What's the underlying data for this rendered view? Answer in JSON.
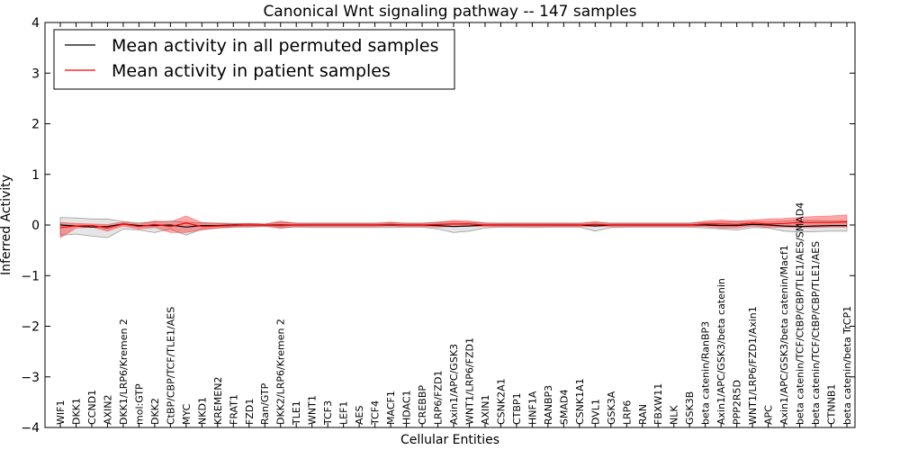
{
  "chart_data": {
    "type": "line",
    "title": "Canonical Wnt signaling pathway -- 147 samples",
    "xlabel": "Cellular Entities",
    "ylabel": "Inferred Activity",
    "ylim": [
      -4,
      4
    ],
    "yticks": [
      -4,
      -3,
      -2,
      -1,
      0,
      1,
      2,
      3,
      4
    ],
    "ytick_labels": [
      "−4",
      "−3",
      "−2",
      "−1",
      "0",
      "1",
      "2",
      "3",
      "4"
    ],
    "grid": false,
    "legend_position": "top-left",
    "categories": [
      "WIF1",
      "DKK1",
      "CCND1",
      "AXIN2",
      "DKK1/LRP6/Kremen 2",
      "mol:GTP",
      "DKK2",
      "CtBP/CBP/TCF/TLE1/AES",
      "MYC",
      "NKD1",
      "KREMEN2",
      "FRAT1",
      "FZD1",
      "Ran/GTP",
      "DKK2/LRP6/Kremen 2",
      "TLE1",
      "WNT1",
      "TCF3",
      "LEF1",
      "AES",
      "TCF4",
      "MACF1",
      "HDAC1",
      "CREBBP",
      "LRP6/FZD1",
      "Axin1/APC/GSK3",
      "WNT1/LRP6/FZD1",
      "AXIN1",
      "CSNK2A1",
      "CTBP1",
      "HNF1A",
      "RANBP3",
      "SMAD4",
      "CSNK1A1",
      "DVL1",
      "GSK3A",
      "LRP6",
      "RAN",
      "FBXW11",
      "NLK",
      "GSK3B",
      "beta catenin/RanBP3",
      "Axin1/APC/GSK3/beta catenin",
      "PPP2R5D",
      "WNT1/LRP6/FZD1/Axin1",
      "APC",
      "Axin1/APC/GSK3/beta catenin/Macf1",
      "beta catenin/TCF/CtBP/CBP/TLE1/AES/SMAD4",
      "beta catenin/TCF/CtBP/CBP/TLE1/AES",
      "CTNNB1",
      "beta catenin/beta TrCP1"
    ],
    "series": [
      {
        "name": "Mean activity in all permuted samples",
        "color": "#000000",
        "values": [
          0.0,
          -0.02,
          -0.04,
          -0.03,
          0.02,
          -0.01,
          -0.01,
          0.0,
          -0.04,
          -0.01,
          -0.01,
          0.0,
          0.0,
          0.0,
          0.0,
          0.0,
          0.0,
          0.0,
          0.0,
          0.0,
          0.0,
          0.0,
          0.0,
          0.0,
          -0.01,
          -0.03,
          -0.02,
          0.0,
          0.0,
          0.0,
          0.0,
          0.0,
          0.0,
          0.0,
          -0.02,
          0.0,
          0.0,
          0.0,
          0.0,
          0.0,
          0.0,
          0.0,
          -0.01,
          -0.01,
          0.01,
          0.0,
          -0.02,
          -0.03,
          -0.02,
          -0.01,
          -0.01
        ],
        "lower": [
          -0.2,
          -0.18,
          -0.22,
          -0.25,
          -0.08,
          -0.1,
          -0.15,
          -0.08,
          -0.2,
          -0.08,
          -0.06,
          -0.04,
          -0.04,
          -0.03,
          -0.04,
          -0.04,
          -0.05,
          -0.05,
          -0.05,
          -0.05,
          -0.05,
          -0.05,
          -0.04,
          -0.04,
          -0.08,
          -0.15,
          -0.12,
          -0.06,
          -0.04,
          -0.04,
          -0.05,
          -0.04,
          -0.04,
          -0.04,
          -0.12,
          -0.05,
          -0.04,
          -0.04,
          -0.04,
          -0.04,
          -0.04,
          -0.06,
          -0.08,
          -0.1,
          -0.05,
          -0.06,
          -0.12,
          -0.14,
          -0.13,
          -0.12,
          -0.12
        ],
        "upper": [
          0.15,
          0.14,
          0.12,
          0.12,
          0.07,
          0.04,
          0.06,
          0.08,
          0.05,
          0.04,
          0.04,
          0.03,
          0.03,
          0.02,
          0.05,
          0.04,
          0.04,
          0.04,
          0.04,
          0.04,
          0.04,
          0.04,
          0.04,
          0.04,
          0.05,
          0.06,
          0.05,
          0.04,
          0.04,
          0.04,
          0.04,
          0.04,
          0.04,
          0.04,
          0.04,
          0.04,
          0.04,
          0.04,
          0.04,
          0.04,
          0.04,
          0.05,
          0.06,
          0.07,
          0.07,
          0.06,
          0.08,
          0.09,
          0.09,
          0.08,
          0.08
        ]
      },
      {
        "name": "Mean activity in patient samples",
        "color": "#ff0000",
        "values": [
          -0.05,
          -0.02,
          -0.01,
          -0.06,
          0.02,
          -0.03,
          0.01,
          -0.03,
          0.04,
          -0.03,
          -0.02,
          -0.01,
          0.0,
          0.0,
          -0.01,
          0.0,
          0.0,
          0.0,
          0.0,
          0.0,
          0.0,
          0.01,
          0.0,
          0.0,
          0.01,
          0.02,
          0.02,
          0.0,
          0.0,
          0.0,
          0.0,
          0.0,
          0.0,
          0.0,
          0.01,
          0.0,
          0.0,
          0.0,
          0.0,
          0.0,
          0.0,
          0.02,
          0.02,
          0.01,
          0.04,
          0.02,
          0.03,
          0.05,
          0.05,
          0.05,
          0.06
        ],
        "lower": [
          -0.25,
          -0.06,
          -0.04,
          -0.12,
          -0.02,
          -0.08,
          -0.05,
          -0.15,
          -0.15,
          -0.1,
          -0.06,
          -0.04,
          -0.03,
          -0.02,
          -0.07,
          -0.03,
          -0.03,
          -0.03,
          -0.03,
          -0.03,
          -0.03,
          -0.02,
          -0.03,
          -0.03,
          -0.04,
          -0.03,
          -0.02,
          -0.03,
          -0.03,
          -0.03,
          -0.03,
          -0.03,
          -0.03,
          -0.03,
          -0.02,
          -0.03,
          -0.03,
          -0.03,
          -0.03,
          -0.03,
          -0.03,
          -0.03,
          -0.06,
          -0.06,
          -0.02,
          -0.05,
          -0.04,
          -0.05,
          -0.05,
          -0.04,
          -0.04
        ],
        "upper": [
          0.05,
          0.03,
          0.02,
          0.01,
          0.06,
          0.02,
          0.08,
          0.06,
          0.18,
          0.05,
          0.03,
          0.02,
          0.03,
          0.02,
          0.08,
          0.03,
          0.03,
          0.03,
          0.03,
          0.03,
          0.03,
          0.06,
          0.03,
          0.03,
          0.06,
          0.09,
          0.08,
          0.04,
          0.03,
          0.03,
          0.03,
          0.03,
          0.03,
          0.03,
          0.07,
          0.03,
          0.03,
          0.03,
          0.03,
          0.03,
          0.03,
          0.08,
          0.1,
          0.08,
          0.1,
          0.12,
          0.13,
          0.15,
          0.17,
          0.18,
          0.2
        ]
      }
    ]
  }
}
